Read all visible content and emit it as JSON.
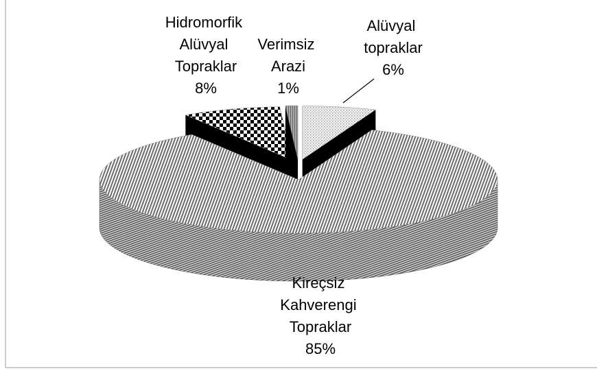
{
  "chart_data": {
    "type": "pie3d",
    "categories": [
      "Alüvyal topraklar",
      "Kireçsiz Kahverengi Topraklar",
      "Hidromorfik Alüvyal Topraklar",
      "Verimsiz Arazi"
    ],
    "values": [
      6,
      85,
      8,
      1
    ],
    "value_labels": [
      "6%",
      "85%",
      "8%",
      "1%"
    ],
    "patterns": [
      "dots",
      "lines",
      "checker",
      "gray"
    ],
    "exploded": [
      true,
      false,
      true,
      true
    ]
  }
}
